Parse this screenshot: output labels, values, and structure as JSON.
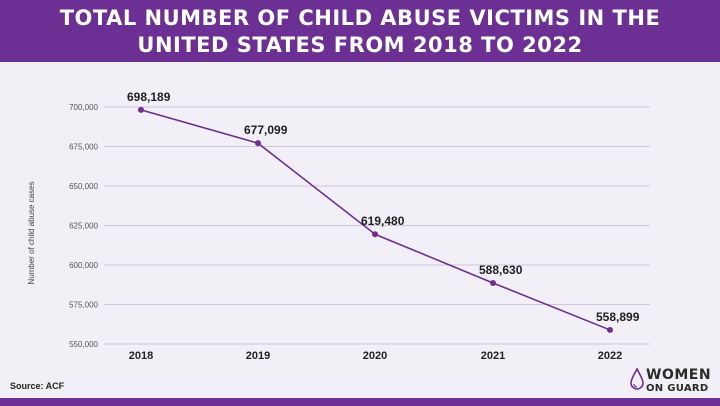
{
  "header": {
    "title_line1": "TOTAL NUMBER OF CHILD ABUSE VICTIMS IN THE",
    "title_line2": "UNITED STATES FROM 2018 TO 2022"
  },
  "footer": {
    "source": "Source: ACF",
    "logo_line1": "WOMEN",
    "logo_line2": "ON GUARD"
  },
  "colors": {
    "brand": "#6c2f93",
    "line": "#6c2f93",
    "grid": "#cfc6dc"
  },
  "chart_data": {
    "type": "line",
    "title": "TOTAL NUMBER OF CHILD ABUSE VICTIMS IN THE UNITED STATES FROM 2018 TO 2022",
    "xlabel": "",
    "ylabel": "Number of child abuse cases",
    "categories": [
      "2018",
      "2019",
      "2020",
      "2021",
      "2022"
    ],
    "series": [
      {
        "values": [
          698189,
          677099,
          619480,
          588630,
          558899
        ],
        "labels": [
          "698,189",
          "677,099",
          "619,480",
          "588,630",
          "558,899"
        ]
      }
    ],
    "ylim": [
      550000,
      700000
    ],
    "yticks": [
      550000,
      575000,
      600000,
      625000,
      650000,
      675000,
      700000
    ],
    "ytick_labels": [
      "550,000",
      "575,000",
      "600,000",
      "625,000",
      "650,000",
      "675,000",
      "700,000"
    ],
    "grid": true,
    "legend": "none"
  }
}
